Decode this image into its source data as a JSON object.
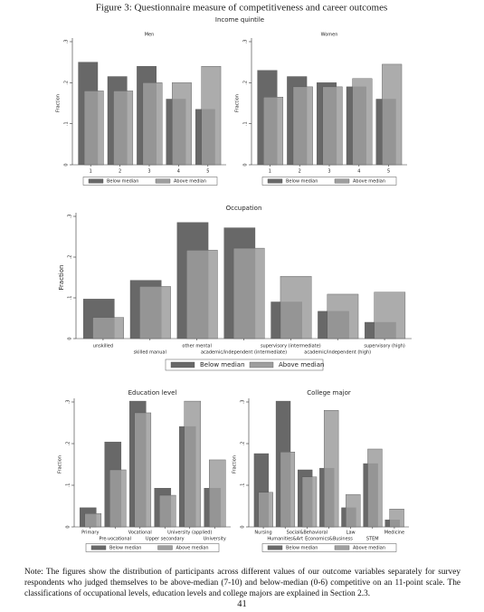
{
  "figure_title": "Figure 3: Questionnaire measure of competitiveness and career outcomes",
  "note": "Note: The figures show the distribution of participants across different values of our outcome variables separately for survey respondents who judged themselves to be above-median (7-10) and below-median (0-6) competitive on an 11-point scale. The classifications of occupational levels, education levels and college majors are explained in Section 2.3.",
  "page_number": "41",
  "chart_data": [
    {
      "type": "bar",
      "supertitle": "Income quintile",
      "title": "Men",
      "ylabel": "Fraction",
      "categories": [
        "1",
        "2",
        "3",
        "4",
        "5"
      ],
      "series": [
        {
          "name": "Below median",
          "color": "#686868",
          "values": [
            0.25,
            0.215,
            0.24,
            0.16,
            0.135
          ]
        },
        {
          "name": "Above median",
          "color": "#9e9e9e",
          "values": [
            0.18,
            0.18,
            0.2,
            0.2,
            0.24
          ]
        }
      ],
      "ylim": [
        0,
        0.3
      ],
      "yticks": [
        0,
        {
          "value": 0.1,
          "label": ".1"
        },
        {
          "value": 0.2,
          "label": ".2"
        },
        {
          "value": 0.3,
          "label": ".3"
        }
      ]
    },
    {
      "type": "bar",
      "title": "Women",
      "ylabel": "Fraction",
      "categories": [
        "1",
        "2",
        "3",
        "4",
        "5"
      ],
      "series": [
        {
          "name": "Below median",
          "color": "#686868",
          "values": [
            0.23,
            0.215,
            0.2,
            0.19,
            0.16
          ]
        },
        {
          "name": "Above median",
          "color": "#9e9e9e",
          "values": [
            0.165,
            0.19,
            0.19,
            0.21,
            0.245
          ]
        }
      ],
      "ylim": [
        0,
        0.3
      ],
      "yticks": [
        0,
        {
          "value": 0.1,
          "label": ".1"
        },
        {
          "value": 0.2,
          "label": ".2"
        },
        {
          "value": 0.3,
          "label": ".3"
        }
      ]
    },
    {
      "type": "bar",
      "title": "Occupation",
      "ylabel": "Fraction",
      "categories": [
        "unskilled",
        "skilled manual",
        "other mental",
        "academic/independent (intermediate)",
        "supervisory (intermediate)",
        "academic/independent (high)",
        "supervisory (high)"
      ],
      "series": [
        {
          "name": "Below median",
          "color": "#686868",
          "values": [
            0.097,
            0.143,
            0.285,
            0.272,
            0.09,
            0.067,
            0.04
          ]
        },
        {
          "name": "Above median",
          "color": "#9e9e9e",
          "values": [
            0.052,
            0.128,
            0.217,
            0.222,
            0.153,
            0.109,
            0.114
          ]
        }
      ],
      "ylim": [
        0,
        0.3
      ],
      "yticks": [
        0,
        {
          "value": 0.1,
          "label": ".1"
        },
        {
          "value": 0.2,
          "label": ".2"
        },
        {
          "value": 0.3,
          "label": ".3"
        }
      ]
    },
    {
      "type": "bar",
      "title": "Education level",
      "ylabel": "Fraction",
      "categories": [
        "Primary",
        "Pre-vocational",
        "Vocational",
        "Upper secondary",
        "University (applied)",
        "University"
      ],
      "series": [
        {
          "name": "Below median",
          "color": "#686868",
          "values": [
            0.046,
            0.204,
            0.302,
            0.093,
            0.241,
            0.093
          ]
        },
        {
          "name": "Above median",
          "color": "#9e9e9e",
          "values": [
            0.032,
            0.137,
            0.274,
            0.076,
            0.302,
            0.161
          ]
        }
      ],
      "ylim": [
        0,
        0.3
      ],
      "yticks": [
        0,
        {
          "value": 0.1,
          "label": ".1"
        },
        {
          "value": 0.2,
          "label": ".2"
        },
        {
          "value": 0.3,
          "label": ".3"
        }
      ]
    },
    {
      "type": "bar",
      "title": "College major",
      "ylabel": "Fraction",
      "categories": [
        "Nursing",
        "Humanities&Art",
        "Social&Behavioral",
        "Economics&Business",
        "Law",
        "STEM",
        "Medicine"
      ],
      "series": [
        {
          "name": "Below median",
          "color": "#686868",
          "values": [
            0.176,
            0.302,
            0.137,
            0.141,
            0.046,
            0.152,
            0.017
          ]
        },
        {
          "name": "Above median",
          "color": "#9e9e9e",
          "values": [
            0.083,
            0.18,
            0.12,
            0.28,
            0.078,
            0.187,
            0.043
          ]
        }
      ],
      "ylim": [
        0,
        0.3
      ],
      "yticks": [
        0,
        {
          "value": 0.1,
          "label": ".1"
        },
        {
          "value": 0.2,
          "label": ".2"
        },
        {
          "value": 0.3,
          "label": ".3"
        }
      ]
    }
  ]
}
